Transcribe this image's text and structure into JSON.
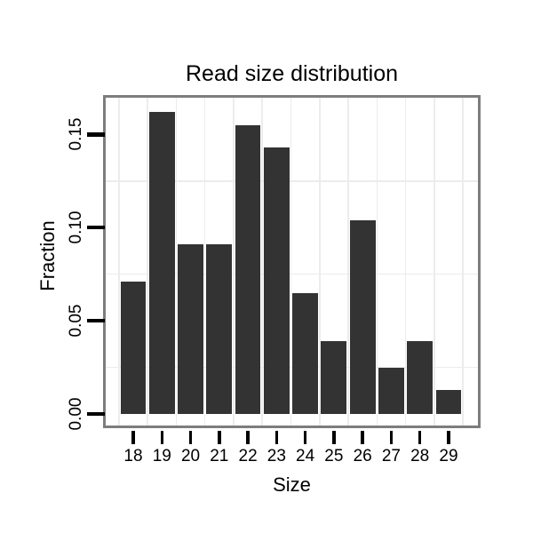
{
  "figure": {
    "background_color": "#ffffff"
  },
  "chart_data": {
    "type": "bar",
    "title": "Read size distribution",
    "xlabel": "Size",
    "ylabel": "Fraction",
    "categories": [
      "18",
      "19",
      "20",
      "21",
      "22",
      "23",
      "24",
      "25",
      "26",
      "27",
      "28",
      "29"
    ],
    "values": [
      0.071,
      0.162,
      0.091,
      0.091,
      0.155,
      0.143,
      0.065,
      0.039,
      0.104,
      0.025,
      0.039,
      0.013
    ],
    "y_ticks": [
      0,
      0.05,
      0.1,
      0.15
    ],
    "y_tick_labels": [
      "0.00",
      "0.05",
      "0.10",
      "0.15"
    ],
    "y_minor_gridlines": [
      0.025,
      0.075,
      0.125
    ],
    "ylim": [
      -0.008,
      0.17
    ],
    "grid": "minor gridlines only, light gray, vertical at half-steps between categories",
    "legend_position": "none",
    "bar_color": "#333333",
    "panel_border_color": "#7d7d7d",
    "gridline_color": "#ececec",
    "tick_color": "#000000",
    "text_color": "#000000"
  }
}
